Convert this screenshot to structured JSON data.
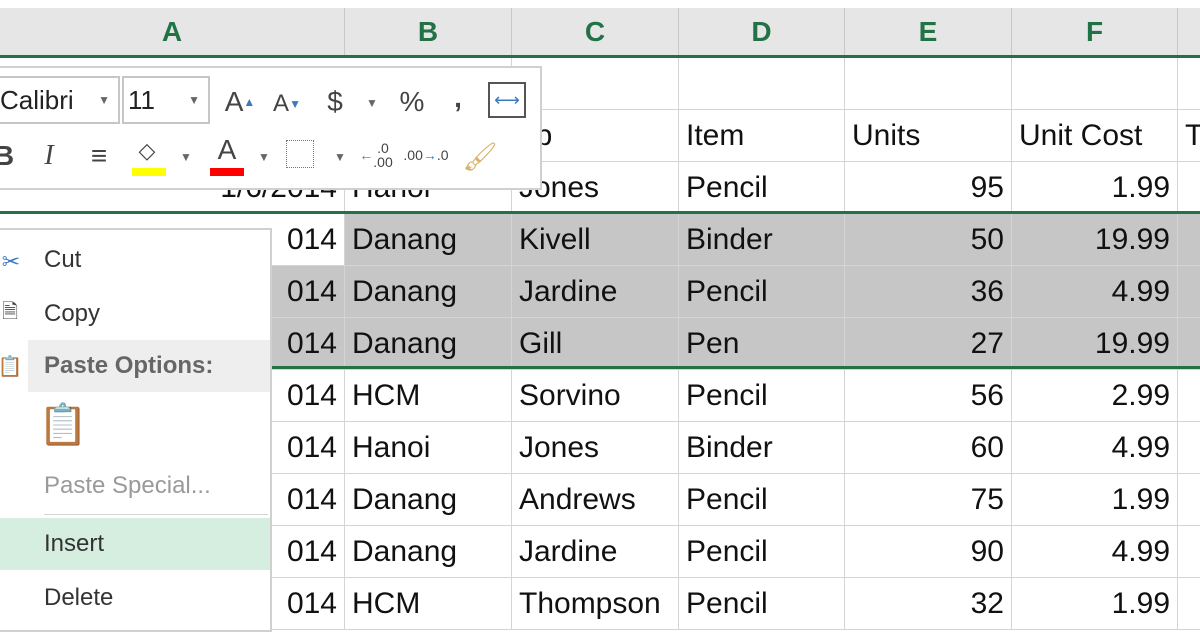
{
  "columns": [
    "A",
    "B",
    "C",
    "D",
    "E",
    "F"
  ],
  "header_row": {
    "rep_partial": "ep",
    "item": "Item",
    "units": "Units",
    "unit_cost": "Unit Cost",
    "total_partial": "T"
  },
  "first_row": {
    "date_partial": "1/6/2014",
    "region": "Hanoi",
    "rep": "Jones",
    "item": "Pencil",
    "units": "95",
    "cost": "1.99"
  },
  "rows": [
    {
      "date": "014",
      "region": "Danang",
      "rep": "Kivell",
      "item": "Binder",
      "units": "50",
      "cost": "19.99",
      "selected": true
    },
    {
      "date": "014",
      "region": "Danang",
      "rep": "Jardine",
      "item": "Pencil",
      "units": "36",
      "cost": "4.99",
      "selected": true
    },
    {
      "date": "014",
      "region": "Danang",
      "rep": "Gill",
      "item": "Pen",
      "units": "27",
      "cost": "19.99",
      "selected": true
    },
    {
      "date": "014",
      "region": "HCM",
      "rep": "Sorvino",
      "item": "Pencil",
      "units": "56",
      "cost": "2.99",
      "selected": false
    },
    {
      "date": "014",
      "region": "Hanoi",
      "rep": "Jones",
      "item": "Binder",
      "units": "60",
      "cost": "4.99",
      "selected": false
    },
    {
      "date": "014",
      "region": "Danang",
      "rep": "Andrews",
      "item": "Pencil",
      "units": "75",
      "cost": "1.99",
      "selected": false
    },
    {
      "date": "014",
      "region": "Danang",
      "rep": "Jardine",
      "item": "Pencil",
      "units": "90",
      "cost": "4.99",
      "selected": false
    },
    {
      "date": "014",
      "region": "HCM",
      "rep": "Thompson",
      "item": "Pencil",
      "units": "32",
      "cost": "1.99",
      "selected": false
    }
  ],
  "mini_toolbar": {
    "font": "Calibri",
    "size": "11",
    "icons": [
      "increase-font-size",
      "decrease-font-size",
      "currency",
      "percent",
      "comma-style",
      "merge-center",
      "bold",
      "italic",
      "center-align",
      "fill-color",
      "font-color",
      "borders",
      "increase-decimal",
      "decrease-decimal",
      "format-painter"
    ],
    "fill_color": "#ffff00",
    "font_color": "#ff0000"
  },
  "context_menu": {
    "cut": "Cut",
    "copy": "Copy",
    "paste_options": "Paste Options:",
    "paste_special": "Paste Special...",
    "insert": "Insert",
    "delete": "Delete"
  },
  "colors": {
    "accent": "#217346",
    "selection": "#c6c6c6",
    "menu_hover": "#d6eedf"
  }
}
